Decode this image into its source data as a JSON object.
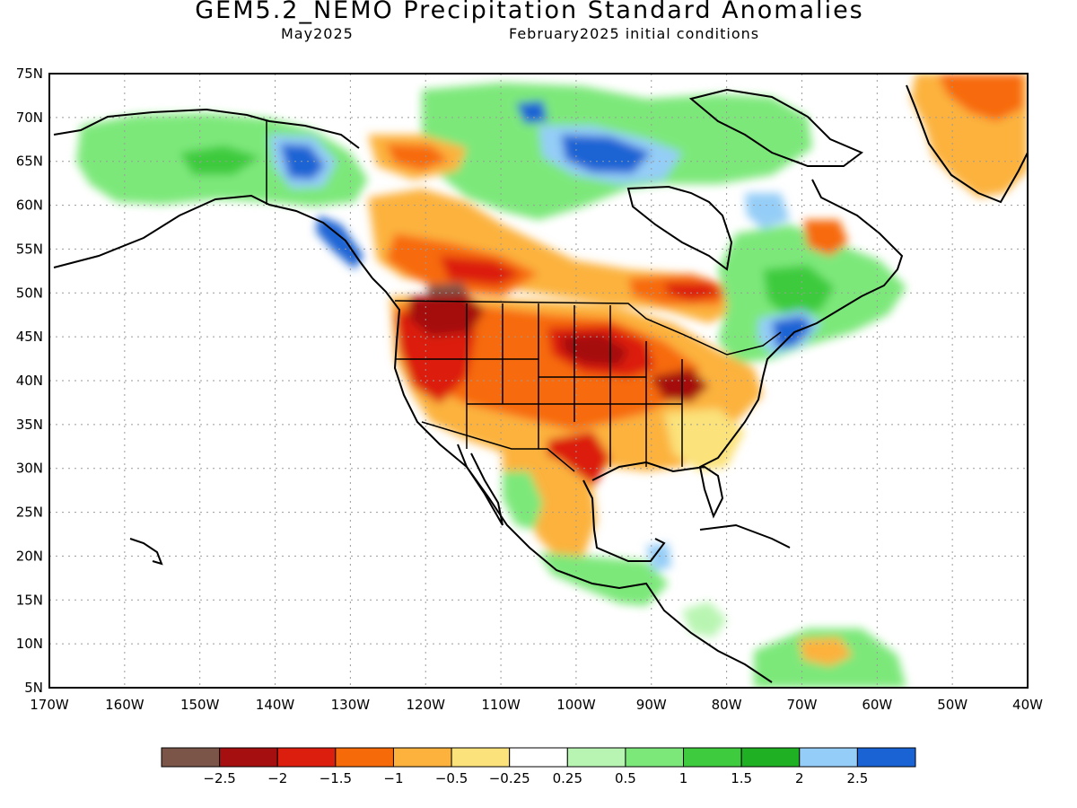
{
  "title": "GEM5.2_NEMO Precipitation Standard Anomalies",
  "subtitle_left": "May2025",
  "subtitle_right": "February2025 initial conditions",
  "lat_labels": [
    "75N",
    "70N",
    "65N",
    "60N",
    "55N",
    "50N",
    "45N",
    "40N",
    "35N",
    "30N",
    "25N",
    "20N",
    "15N",
    "10N",
    "5N"
  ],
  "lon_labels": [
    "170W",
    "160W",
    "150W",
    "140W",
    "130W",
    "120W",
    "110W",
    "100W",
    "90W",
    "80W",
    "70W",
    "60W",
    "50W",
    "40W"
  ],
  "legend": {
    "colors": [
      "#7b5548",
      "#a50f0f",
      "#dc1e0f",
      "#f76a0a",
      "#fcb23c",
      "#fbe27a",
      "#ffffff",
      "#b9f5b2",
      "#7de87a",
      "#3ecb3e",
      "#1fb024",
      "#94cdf7",
      "#1a63d4"
    ],
    "labels": [
      "−2.5",
      "−2",
      "−1.5",
      "−1",
      "−0.5",
      "−0.25",
      "0.25",
      "0.5",
      "1",
      "1.5",
      "2",
      "2.5"
    ]
  }
}
